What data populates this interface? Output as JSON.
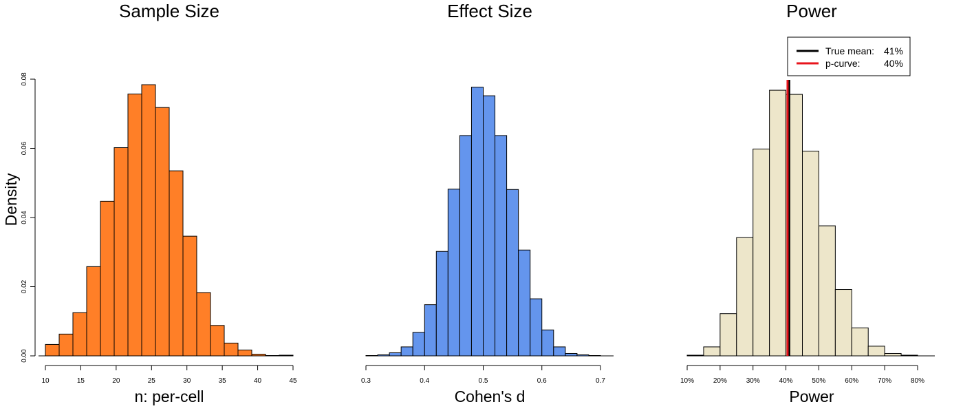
{
  "chart_data": [
    {
      "type": "bar",
      "title": "Sample Size",
      "xlabel": "n: per-cell",
      "ylabel": "Density",
      "color": "#FF7F27",
      "xlim": [
        10,
        46
      ],
      "ylim": [
        0,
        0.08
      ],
      "xticks": [
        "10",
        "15",
        "20",
        "25",
        "30",
        "35",
        "40",
        "45"
      ],
      "yticks": [
        "0.00",
        "0.02",
        "0.04",
        "0.06",
        "0.08"
      ],
      "bins": [
        {
          "x0": 10,
          "x1": 12,
          "value": 0.0033
        },
        {
          "x0": 12,
          "x1": 14,
          "value": 0.0063
        },
        {
          "x0": 14,
          "x1": 16,
          "value": 0.0125
        },
        {
          "x0": 16,
          "x1": 18,
          "value": 0.0258
        },
        {
          "x0": 18,
          "x1": 20,
          "value": 0.0447
        },
        {
          "x0": 20,
          "x1": 22,
          "value": 0.0602
        },
        {
          "x0": 22,
          "x1": 24,
          "value": 0.0757
        },
        {
          "x0": 24,
          "x1": 26,
          "value": 0.0784
        },
        {
          "x0": 26,
          "x1": 28,
          "value": 0.0718
        },
        {
          "x0": 28,
          "x1": 30,
          "value": 0.0535
        },
        {
          "x0": 30,
          "x1": 32,
          "value": 0.0346
        },
        {
          "x0": 32,
          "x1": 34,
          "value": 0.0183
        },
        {
          "x0": 34,
          "x1": 36,
          "value": 0.0088
        },
        {
          "x0": 36,
          "x1": 38,
          "value": 0.0037
        },
        {
          "x0": 38,
          "x1": 40,
          "value": 0.0017
        },
        {
          "x0": 40,
          "x1": 42,
          "value": 0.0005
        },
        {
          "x0": 42,
          "x1": 44,
          "value": 0.0001
        },
        {
          "x0": 44,
          "x1": 46,
          "value": 0.0002
        }
      ]
    },
    {
      "type": "bar",
      "title": "Effect Size",
      "xlabel": "Cohen's d",
      "color": "#6495ED",
      "xlim": [
        0.3,
        0.7
      ],
      "ylim": [
        0,
        0.08
      ],
      "xticks": [
        "0.3",
        "0.4",
        "0.5",
        "0.6",
        "0.7"
      ],
      "bins": [
        {
          "x0": 0.3,
          "x1": 0.32,
          "value": 0.0001
        },
        {
          "x0": 0.32,
          "x1": 0.34,
          "value": 0.0003
        },
        {
          "x0": 0.34,
          "x1": 0.36,
          "value": 0.0009
        },
        {
          "x0": 0.36,
          "x1": 0.38,
          "value": 0.0026
        },
        {
          "x0": 0.38,
          "x1": 0.4,
          "value": 0.0068
        },
        {
          "x0": 0.4,
          "x1": 0.42,
          "value": 0.0148
        },
        {
          "x0": 0.42,
          "x1": 0.44,
          "value": 0.0302
        },
        {
          "x0": 0.44,
          "x1": 0.46,
          "value": 0.0482
        },
        {
          "x0": 0.46,
          "x1": 0.48,
          "value": 0.0637
        },
        {
          "x0": 0.48,
          "x1": 0.5,
          "value": 0.0777
        },
        {
          "x0": 0.5,
          "x1": 0.52,
          "value": 0.0752
        },
        {
          "x0": 0.52,
          "x1": 0.54,
          "value": 0.0637
        },
        {
          "x0": 0.54,
          "x1": 0.56,
          "value": 0.0481
        },
        {
          "x0": 0.56,
          "x1": 0.58,
          "value": 0.0306
        },
        {
          "x0": 0.58,
          "x1": 0.6,
          "value": 0.0165
        },
        {
          "x0": 0.6,
          "x1": 0.62,
          "value": 0.0075
        },
        {
          "x0": 0.62,
          "x1": 0.64,
          "value": 0.0026
        },
        {
          "x0": 0.64,
          "x1": 0.66,
          "value": 0.0007
        },
        {
          "x0": 0.66,
          "x1": 0.68,
          "value": 0.0003
        },
        {
          "x0": 0.68,
          "x1": 0.7,
          "value": 0.0001
        }
      ]
    },
    {
      "type": "bar",
      "title": "Power",
      "xlabel": "Power",
      "color": "#EDE6CA",
      "xlim": [
        0.1,
        0.8
      ],
      "ylim": [
        0,
        0.08
      ],
      "xticks": [
        "10%",
        "20%",
        "30%",
        "40%",
        "50%",
        "60%",
        "70%",
        "80%"
      ],
      "bins": [
        {
          "x0": 0.1,
          "x1": 0.15,
          "value": 0.0002
        },
        {
          "x0": 0.15,
          "x1": 0.2,
          "value": 0.0026
        },
        {
          "x0": 0.2,
          "x1": 0.25,
          "value": 0.0122
        },
        {
          "x0": 0.25,
          "x1": 0.3,
          "value": 0.0342
        },
        {
          "x0": 0.3,
          "x1": 0.35,
          "value": 0.0598
        },
        {
          "x0": 0.35,
          "x1": 0.4,
          "value": 0.0768
        },
        {
          "x0": 0.4,
          "x1": 0.45,
          "value": 0.0756
        },
        {
          "x0": 0.45,
          "x1": 0.5,
          "value": 0.0592
        },
        {
          "x0": 0.5,
          "x1": 0.55,
          "value": 0.0376
        },
        {
          "x0": 0.55,
          "x1": 0.6,
          "value": 0.0192
        },
        {
          "x0": 0.6,
          "x1": 0.65,
          "value": 0.0081
        },
        {
          "x0": 0.65,
          "x1": 0.7,
          "value": 0.0028
        },
        {
          "x0": 0.7,
          "x1": 0.75,
          "value": 0.0007
        },
        {
          "x0": 0.75,
          "x1": 0.8,
          "value": 0.0002
        }
      ],
      "reference_lines": [
        {
          "label": "True mean:",
          "value_text": "41%",
          "x": 0.41,
          "color": "#000000"
        },
        {
          "label": "p-curve:",
          "value_text": "40%",
          "x": 0.405,
          "color": "#E8141C"
        }
      ],
      "legend_position": "top-right"
    }
  ]
}
